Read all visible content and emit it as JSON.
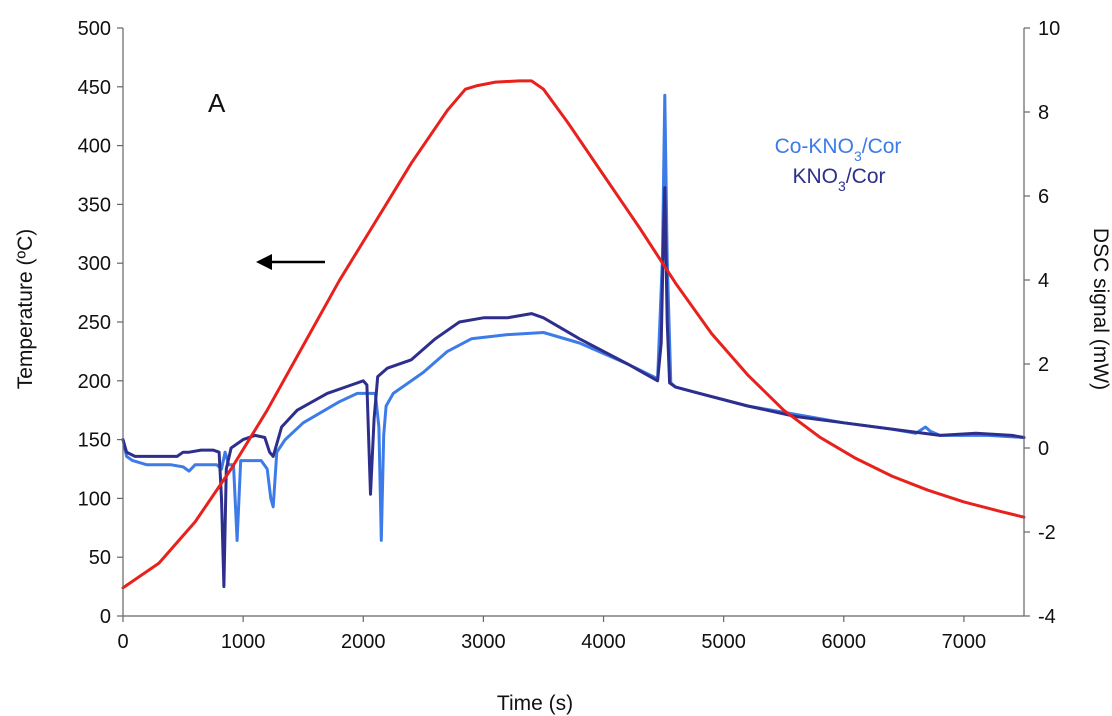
{
  "chart_data": {
    "type": "line",
    "panel_label": "A",
    "xlabel": "Time (s)",
    "ylabel_left": "Temperature (ºC)",
    "ylabel_right": "DSC signal (mW)",
    "xlim": [
      0,
      7500
    ],
    "ylim_left": [
      0,
      500
    ],
    "ylim_right": [
      -4,
      10
    ],
    "x_ticks": [
      0,
      1000,
      2000,
      3000,
      4000,
      5000,
      6000,
      7000
    ],
    "y_left_ticks": [
      0,
      50,
      100,
      150,
      200,
      250,
      300,
      350,
      400,
      450,
      500
    ],
    "y_right_ticks": [
      -4,
      -2,
      0,
      2,
      4,
      6,
      8,
      10
    ],
    "grid": false,
    "legend": {
      "position": "top-right",
      "entries": [
        {
          "label": "Co-KNO",
          "sub": "3",
          "suffix": "/Cor",
          "color": "#3d7ce8"
        },
        {
          "label": "KNO",
          "sub": "3",
          "suffix": "/Cor",
          "color": "#2e2f8c"
        }
      ]
    },
    "annotation": {
      "type": "arrow",
      "direction": "left",
      "points_to_axis": "left",
      "at_y": 265
    },
    "series": [
      {
        "axis": "left",
        "color": "#e8211c",
        "x": [
          0,
          300,
          600,
          900,
          1200,
          1500,
          1800,
          2100,
          2400,
          2700,
          2850,
          2950,
          3100,
          3300,
          3400,
          3500,
          3700,
          4000,
          4300,
          4600,
          4900,
          5200,
          5500,
          5800,
          6100,
          6400,
          6700,
          7000,
          7300,
          7500
        ],
        "values": [
          24,
          45,
          80,
          125,
          175,
          230,
          285,
          335,
          385,
          430,
          448,
          451,
          454,
          455,
          455,
          448,
          420,
          375,
          330,
          283,
          240,
          205,
          175,
          152,
          134,
          119,
          107,
          97,
          89,
          84
        ]
      },
      {
        "axis": "right",
        "color": "#3d7ce8",
        "x": [
          0,
          30,
          80,
          200,
          400,
          500,
          550,
          600,
          700,
          780,
          820,
          850,
          880,
          920,
          950,
          980,
          1050,
          1150,
          1200,
          1230,
          1250,
          1280,
          1350,
          1500,
          1800,
          1950,
          2100,
          2130,
          2150,
          2170,
          2190,
          2250,
          2500,
          2700,
          2900,
          3200,
          3500,
          3800,
          4200,
          4450,
          4490,
          4510,
          4530,
          4560,
          4600,
          4800,
          5200,
          5600,
          6000,
          6400,
          6600,
          6680,
          6720,
          6800,
          7200,
          7500
        ],
        "values": [
          0.2,
          -0.2,
          -0.3,
          -0.4,
          -0.4,
          -0.45,
          -0.55,
          -0.4,
          -0.4,
          -0.4,
          -0.5,
          -0.1,
          -0.4,
          -0.4,
          -2.2,
          -0.3,
          -0.3,
          -0.3,
          -0.5,
          -1.2,
          -1.4,
          -0.1,
          0.2,
          0.6,
          1.1,
          1.3,
          1.3,
          0.5,
          -2.2,
          0.3,
          1.0,
          1.3,
          1.8,
          2.3,
          2.6,
          2.7,
          2.75,
          2.5,
          2.0,
          1.65,
          4.5,
          8.4,
          4.5,
          1.55,
          1.45,
          1.3,
          1.0,
          0.8,
          0.6,
          0.45,
          0.35,
          0.5,
          0.4,
          0.3,
          0.3,
          0.25
        ]
      },
      {
        "axis": "right",
        "color": "#2e2f8c",
        "x": [
          0,
          30,
          100,
          300,
          450,
          500,
          550,
          650,
          750,
          800,
          820,
          840,
          860,
          900,
          1000,
          1100,
          1180,
          1220,
          1250,
          1280,
          1320,
          1450,
          1700,
          1900,
          2000,
          2030,
          2060,
          2090,
          2120,
          2200,
          2400,
          2600,
          2800,
          3000,
          3200,
          3400,
          3500,
          3800,
          4200,
          4450,
          4480,
          4500,
          4510,
          4530,
          4550,
          4600,
          4800,
          5200,
          5600,
          6000,
          6400,
          6800,
          7100,
          7400,
          7500
        ],
        "values": [
          0.2,
          -0.1,
          -0.2,
          -0.2,
          -0.2,
          -0.1,
          -0.1,
          -0.05,
          -0.05,
          -0.1,
          -1.2,
          -3.3,
          -0.5,
          0.0,
          0.2,
          0.3,
          0.25,
          -0.1,
          -0.2,
          0.1,
          0.5,
          0.9,
          1.3,
          1.5,
          1.6,
          1.5,
          -1.1,
          0.7,
          1.7,
          1.9,
          2.1,
          2.6,
          3.0,
          3.1,
          3.1,
          3.2,
          3.1,
          2.6,
          2.0,
          1.6,
          2.5,
          5.2,
          6.2,
          3.0,
          1.55,
          1.45,
          1.3,
          1.0,
          0.75,
          0.6,
          0.45,
          0.3,
          0.35,
          0.3,
          0.25
        ]
      }
    ]
  }
}
